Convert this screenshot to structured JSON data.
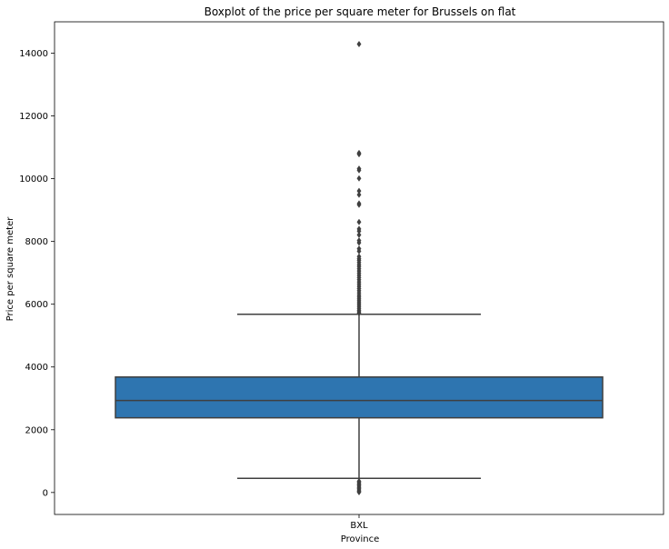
{
  "chart_data": {
    "type": "boxplot",
    "title": "Boxplot of the price per square meter for Brussels on flat",
    "xlabel": "Province",
    "ylabel": "Price per square meter",
    "categories": [
      "BXL"
    ],
    "ylim": [
      -700,
      15000
    ],
    "yticks": [
      0,
      2000,
      4000,
      6000,
      8000,
      10000,
      12000,
      14000
    ],
    "box_color": "#2e75b0",
    "line_color": "#3f3f3f",
    "boxes": [
      {
        "category": "BXL",
        "whisker_low": 450,
        "q1": 2380,
        "median": 2930,
        "q3": 3680,
        "whisker_high": 5680,
        "outliers": [
          14290,
          10820,
          10780,
          10320,
          10270,
          10010,
          9610,
          9490,
          9210,
          9170,
          8620,
          8400,
          8330,
          8210,
          8030,
          7960,
          7770,
          7690,
          7520,
          7450,
          7400,
          7330,
          7260,
          7200,
          7130,
          7060,
          6990,
          6920,
          6850,
          6780,
          6710,
          6640,
          6570,
          6500,
          6430,
          6360,
          6290,
          6230,
          6170,
          6110,
          6050,
          5990,
          5930,
          5870,
          5810,
          5760,
          5720,
          360,
          320,
          280,
          240,
          200,
          160,
          120,
          80,
          40,
          10
        ]
      }
    ]
  }
}
